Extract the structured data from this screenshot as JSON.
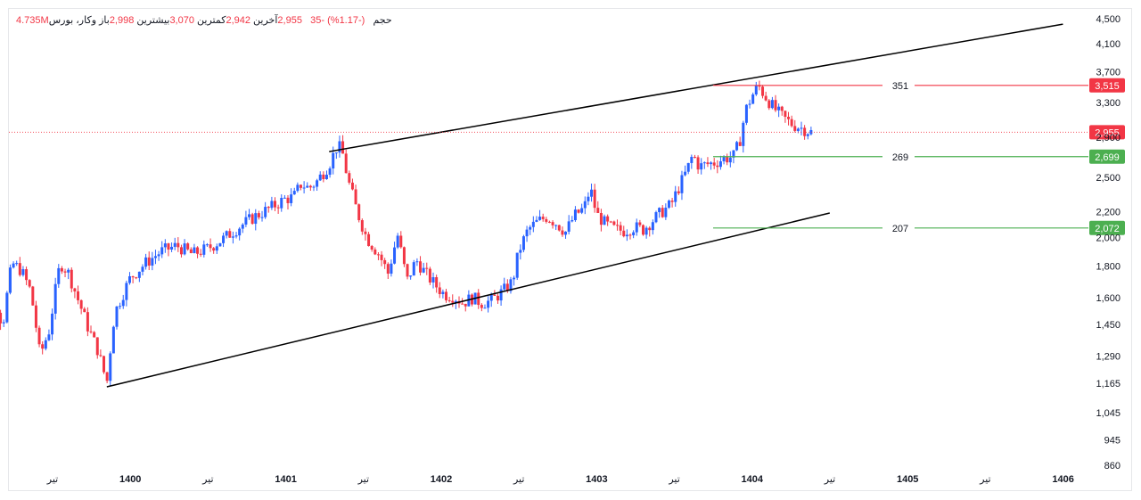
{
  "legend": {
    "symbol": "وکار، بورس",
    "open_label": "باز",
    "open_value": "2,998",
    "high_label": "بیشترین",
    "high_value": "3,070",
    "low_label": "کمترین",
    "low_value": "2,942",
    "last_label": "آخرین",
    "last_value": "2,955",
    "change_value": "-35",
    "change_pct": "(-1.17%)",
    "volume_label": "حجم",
    "volume_value": "4.735M"
  },
  "colors": {
    "up": "#2962ff",
    "down": "#f23645",
    "red_level": "#f23645",
    "green_level": "#4caf50",
    "trendline": "#000000",
    "grid_text": "#131722"
  },
  "chart_data": {
    "type": "candlestick",
    "y_scale": "log",
    "ylim": [
      860,
      4500
    ],
    "y_ticks": [
      "4,500",
      "4,100",
      "3,700",
      "3,300",
      "2,900",
      "2,500",
      "2,200",
      "2,000",
      "1,800",
      "1,600",
      "1,450",
      "1,290",
      "1,165",
      "1,045",
      "945",
      "860"
    ],
    "x_ticks": [
      "تیر",
      "1400",
      "تیر",
      "1401",
      "تیر",
      "1402",
      "تیر",
      "1403",
      "تیر",
      "1404",
      "تیر",
      "1405",
      "تیر",
      "1406"
    ],
    "price_path": [
      [
        1399.0,
        1400
      ],
      [
        1399.05,
        1460
      ],
      [
        1399.1,
        1690
      ],
      [
        1399.18,
        1440
      ],
      [
        1399.24,
        1820
      ],
      [
        1399.3,
        1770
      ],
      [
        1399.36,
        1640
      ],
      [
        1399.42,
        1290
      ],
      [
        1399.48,
        1420
      ],
      [
        1399.55,
        1820
      ],
      [
        1399.6,
        1760
      ],
      [
        1399.66,
        1600
      ],
      [
        1399.73,
        1430
      ],
      [
        1399.79,
        1320
      ],
      [
        1399.85,
        1165
      ],
      [
        1399.9,
        1510
      ],
      [
        1400.0,
        1720
      ],
      [
        1400.1,
        1820
      ],
      [
        1400.2,
        1900
      ],
      [
        1400.3,
        1940
      ],
      [
        1400.4,
        1880
      ],
      [
        1400.5,
        1920
      ],
      [
        1400.6,
        1990
      ],
      [
        1400.7,
        2080
      ],
      [
        1400.8,
        2160
      ],
      [
        1400.9,
        2230
      ],
      [
        1401.0,
        2310
      ],
      [
        1401.05,
        2320
      ],
      [
        1401.1,
        2440
      ],
      [
        1401.15,
        2400
      ],
      [
        1401.2,
        2460
      ],
      [
        1401.28,
        2620
      ],
      [
        1401.33,
        2800
      ],
      [
        1401.36,
        2780
      ],
      [
        1401.4,
        2480
      ],
      [
        1401.46,
        2200
      ],
      [
        1401.52,
        2000
      ],
      [
        1401.6,
        1880
      ],
      [
        1401.66,
        1750
      ],
      [
        1401.72,
        2020
      ],
      [
        1401.78,
        1700
      ],
      [
        1401.84,
        1840
      ],
      [
        1401.9,
        1750
      ],
      [
        1401.96,
        1680
      ],
      [
        1402.02,
        1620
      ],
      [
        1402.08,
        1610
      ],
      [
        1402.14,
        1570
      ],
      [
        1402.2,
        1600
      ],
      [
        1402.26,
        1570
      ],
      [
        1402.32,
        1580
      ],
      [
        1402.4,
        1640
      ],
      [
        1402.46,
        1700
      ],
      [
        1402.5,
        1900
      ],
      [
        1402.56,
        2060
      ],
      [
        1402.62,
        2120
      ],
      [
        1402.68,
        2160
      ],
      [
        1402.74,
        2110
      ],
      [
        1402.8,
        2040
      ],
      [
        1402.86,
        2170
      ],
      [
        1402.92,
        2230
      ],
      [
        1402.96,
        2400
      ],
      [
        1403.0,
        2180
      ],
      [
        1403.06,
        2100
      ],
      [
        1403.12,
        2060
      ],
      [
        1403.18,
        2050
      ],
      [
        1403.24,
        2080
      ],
      [
        1403.3,
        2060
      ],
      [
        1403.36,
        2130
      ],
      [
        1403.42,
        2200
      ],
      [
        1403.48,
        2260
      ],
      [
        1403.54,
        2440
      ],
      [
        1403.58,
        2560
      ],
      [
        1403.62,
        2720
      ],
      [
        1403.66,
        2600
      ],
      [
        1403.7,
        2620
      ],
      [
        1403.76,
        2640
      ],
      [
        1403.82,
        2680
      ],
      [
        1403.88,
        2700
      ],
      [
        1403.92,
        2850
      ],
      [
        1403.96,
        3210
      ],
      [
        1404.0,
        3380
      ],
      [
        1404.04,
        3515
      ],
      [
        1404.08,
        3390
      ],
      [
        1404.14,
        3230
      ],
      [
        1404.2,
        3120
      ],
      [
        1404.26,
        3040
      ],
      [
        1404.32,
        3000
      ],
      [
        1404.38,
        2955
      ]
    ],
    "trendlines": [
      {
        "x1": 1401.28,
        "y1": 2750,
        "x2": 1406.0,
        "y2": 4410
      },
      {
        "x1": 1399.85,
        "y1": 1150,
        "x2": 1404.5,
        "y2": 2190
      }
    ],
    "levels": [
      {
        "value": 3515,
        "label": "3,515",
        "distance": "351",
        "color": "red"
      },
      {
        "value": 2699,
        "label": "2,699",
        "distance": "269",
        "color": "green"
      },
      {
        "value": 2072,
        "label": "2,072",
        "distance": "207",
        "color": "green"
      }
    ],
    "last_price": {
      "value": 2955,
      "label": "2,955"
    }
  }
}
